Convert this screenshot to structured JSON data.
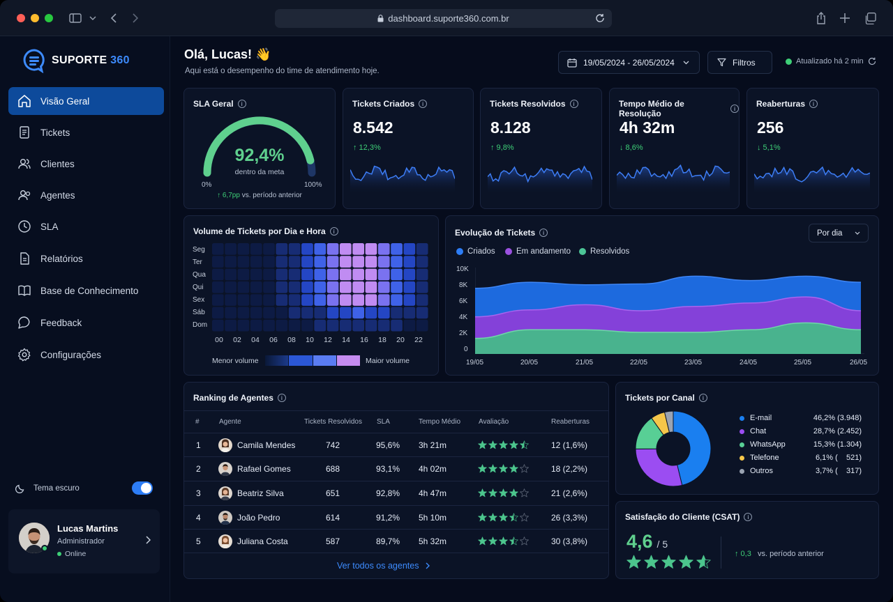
{
  "browser": {
    "url": "dashboard.suporte360.com.br"
  },
  "brand": {
    "name": "SUPORTE",
    "accent": "360"
  },
  "nav": [
    {
      "label": "Visão Geral",
      "icon": "home-icon",
      "active": true
    },
    {
      "label": "Tickets",
      "icon": "ticket-icon"
    },
    {
      "label": "Clientes",
      "icon": "users-icon"
    },
    {
      "label": "Agentes",
      "icon": "agents-icon"
    },
    {
      "label": "SLA",
      "icon": "clock-icon"
    },
    {
      "label": "Relatórios",
      "icon": "report-icon"
    },
    {
      "label": "Base de Conhecimento",
      "icon": "book-icon"
    },
    {
      "label": "Feedback",
      "icon": "chat-bubble-icon"
    },
    {
      "label": "Configurações",
      "icon": "gear-icon"
    }
  ],
  "theme": {
    "label": "Tema escuro",
    "enabled": true
  },
  "user": {
    "name": "Lucas Martins",
    "role": "Administrador",
    "status": "Online"
  },
  "header": {
    "greeting": "Olá, Lucas! 👋",
    "subtitle": "Aqui está o desempenho do time de atendimento hoje.",
    "date_range": "19/05/2024 - 26/05/2024",
    "filters": "Filtros",
    "updated": "Atualizado há 2 min"
  },
  "sla": {
    "title": "SLA Geral",
    "value": "92,4%",
    "percent": 92.4,
    "caption": "dentro da meta",
    "min": "0%",
    "max": "100%",
    "delta": "↑ 6,7pp",
    "delta_note": "vs. período anterior"
  },
  "kpis": [
    {
      "title": "Tickets Criados",
      "value": "8.542",
      "delta": "↑ 12,3%"
    },
    {
      "title": "Tickets Resolvidos",
      "value": "8.128",
      "delta": "↑ 9,8%"
    },
    {
      "title": "Tempo Médio de Resolução",
      "value": "4h 32m",
      "delta": "↓ 8,6%"
    },
    {
      "title": "Reaberturas",
      "value": "256",
      "delta": "↓ 5,1%"
    }
  ],
  "heatmap": {
    "title": "Volume de Tickets por Dia e Hora",
    "days": [
      "Seg",
      "Ter",
      "Qua",
      "Qui",
      "Sex",
      "Sáb",
      "Dom"
    ],
    "hours": [
      "00",
      "02",
      "04",
      "06",
      "08",
      "10",
      "12",
      "14",
      "16",
      "18",
      "20",
      "22"
    ],
    "legend_min": "Menor volume",
    "legend_max": "Maior volume"
  },
  "evolution": {
    "title": "Evolução de Tickets",
    "period": "Por dia",
    "legend": [
      {
        "name": "Criados",
        "color": "#2d7df6"
      },
      {
        "name": "Em andamento",
        "color": "#9b51e0"
      },
      {
        "name": "Resolvidos",
        "color": "#4cc597"
      }
    ],
    "y_ticks": [
      "10K",
      "8K",
      "6K",
      "4K",
      "2K",
      "0"
    ],
    "x_ticks": [
      "19/05",
      "20/05",
      "21/05",
      "22/05",
      "23/05",
      "24/05",
      "25/05",
      "26/05"
    ]
  },
  "chart_data": {
    "type": "area",
    "title": "Evolução de Tickets",
    "x": [
      "19/05",
      "20/05",
      "21/05",
      "22/05",
      "23/05",
      "24/05",
      "25/05",
      "26/05"
    ],
    "ylim": [
      0,
      10000
    ],
    "series": [
      {
        "name": "Criados",
        "values": [
          7600,
          8300,
          8000,
          8100,
          9000,
          8500,
          9000,
          8300
        ]
      },
      {
        "name": "Em andamento",
        "values": [
          4300,
          5100,
          5700,
          5000,
          5500,
          5900,
          6600,
          5000
        ]
      },
      {
        "name": "Resolvidos",
        "values": [
          1800,
          2800,
          2800,
          2500,
          2500,
          2800,
          3600,
          2800
        ]
      }
    ]
  },
  "agents": {
    "title": "Ranking de Agentes",
    "headers": [
      "#",
      "Agente",
      "Tickets Resolvidos",
      "SLA",
      "Tempo Médio",
      "Avaliação",
      "Reaberturas"
    ],
    "rows": [
      {
        "rank": "1",
        "name": "Camila Mendes",
        "resolved": "742",
        "sla": "95,6%",
        "time": "3h 21m",
        "rating": 4.5,
        "reopen": "12 (1,6%)"
      },
      {
        "rank": "2",
        "name": "Rafael Gomes",
        "resolved": "688",
        "sla": "93,1%",
        "time": "4h 02m",
        "rating": 4,
        "reopen": "18 (2,2%)"
      },
      {
        "rank": "3",
        "name": "Beatriz Silva",
        "resolved": "651",
        "sla": "92,8%",
        "time": "4h 47m",
        "rating": 4,
        "reopen": "21 (2,6%)"
      },
      {
        "rank": "4",
        "name": "João Pedro",
        "resolved": "614",
        "sla": "91,2%",
        "time": "5h 10m",
        "rating": 3.5,
        "reopen": "26 (3,3%)"
      },
      {
        "rank": "5",
        "name": "Juliana Costa",
        "resolved": "587",
        "sla": "89,7%",
        "time": "5h 32m",
        "rating": 3.5,
        "reopen": "30 (3,8%)"
      }
    ],
    "link": "Ver todos os agentes"
  },
  "channels": {
    "title": "Tickets por Canal",
    "items": [
      {
        "name": "E-mail",
        "pct": "46,2%",
        "count": "(3.948)",
        "share": 46.2,
        "color": "#1a7ff0"
      },
      {
        "name": "Chat",
        "pct": "28,7%",
        "count": "(2.452)",
        "share": 28.7,
        "color": "#9b4df2"
      },
      {
        "name": "WhatsApp",
        "pct": "15,3%",
        "count": "(1.304)",
        "share": 15.3,
        "color": "#58cf95"
      },
      {
        "name": "Telefone",
        "pct": "6,1%",
        "count": "(    521)",
        "share": 6.1,
        "color": "#f5c64a"
      },
      {
        "name": "Outros",
        "pct": "3,7%",
        "count": "(    317)",
        "share": 3.7,
        "color": "#9aa3b2"
      }
    ]
  },
  "csat": {
    "title": "Satisfação do Cliente (CSAT)",
    "value": "4,6",
    "scale": "/ 5",
    "rating": 4.6,
    "delta": "↑ 0,3",
    "delta_note": "vs. período anterior"
  }
}
